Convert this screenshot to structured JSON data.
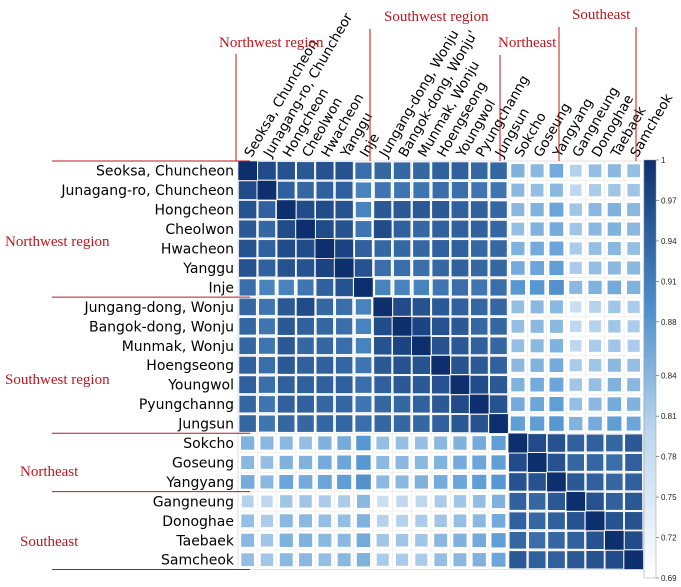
{
  "chart_data": {
    "type": "heatmap",
    "rows": [
      "Seoksa, Chuncheon",
      "Junagang-ro, Chuncheon",
      "Hongcheon",
      "Cheolwon",
      "Hwacheon",
      "Yanggu",
      "Inje",
      "Jungang-dong, Wonju",
      "Bangok-dong, Wonju",
      "Munmak, Wonju",
      "Hoengseong",
      "Youngwol",
      "Pyungchanng",
      "Jungsun",
      "Sokcho",
      "Goseung",
      "Yangyang",
      "Gangneung",
      "Donoghae",
      "Taebaek",
      "Samcheok"
    ],
    "columns": [
      "Seoksa, Chuncheon",
      "Junagang-ro, Chuncheor",
      "Hongcheon",
      "Cheolwon",
      "Hwacheon",
      "Yanggu",
      "Inje",
      "Jungang-dong, Wonju",
      "Bangok-dong, Wonju'",
      "Munmak, Wonju",
      "Hoengseong",
      "Youngwol",
      "Pyungchanng",
      "Jungsun",
      "Sokcho",
      "Goseung",
      "Yangyang",
      "Gangneung",
      "Donoghae",
      "Taebaek",
      "Samcheok"
    ],
    "values": [
      [
        1.0,
        0.96,
        0.95,
        0.94,
        0.95,
        0.95,
        0.91,
        0.92,
        0.92,
        0.92,
        0.93,
        0.93,
        0.92,
        0.92,
        0.81,
        0.8,
        0.82,
        0.76,
        0.79,
        0.8,
        0.79
      ],
      [
        0.96,
        1.0,
        0.93,
        0.92,
        0.93,
        0.93,
        0.88,
        0.9,
        0.9,
        0.9,
        0.91,
        0.91,
        0.9,
        0.9,
        0.8,
        0.79,
        0.8,
        0.75,
        0.77,
        0.78,
        0.78
      ],
      [
        0.95,
        0.93,
        1.0,
        0.96,
        0.96,
        0.95,
        0.88,
        0.94,
        0.94,
        0.94,
        0.94,
        0.93,
        0.93,
        0.92,
        0.8,
        0.81,
        0.83,
        0.78,
        0.8,
        0.81,
        0.8
      ],
      [
        0.94,
        0.92,
        0.96,
        1.0,
        0.96,
        0.95,
        0.9,
        0.96,
        0.93,
        0.92,
        0.93,
        0.93,
        0.93,
        0.92,
        0.79,
        0.81,
        0.82,
        0.78,
        0.8,
        0.81,
        0.8
      ],
      [
        0.95,
        0.93,
        0.96,
        0.96,
        1.0,
        0.97,
        0.93,
        0.92,
        0.92,
        0.92,
        0.93,
        0.93,
        0.92,
        0.92,
        0.81,
        0.82,
        0.83,
        0.77,
        0.79,
        0.8,
        0.79
      ],
      [
        0.95,
        0.93,
        0.95,
        0.95,
        0.97,
        1.0,
        0.95,
        0.91,
        0.91,
        0.91,
        0.92,
        0.93,
        0.92,
        0.92,
        0.82,
        0.83,
        0.84,
        0.77,
        0.79,
        0.8,
        0.8
      ],
      [
        0.91,
        0.88,
        0.88,
        0.9,
        0.93,
        0.95,
        1.0,
        0.88,
        0.88,
        0.88,
        0.9,
        0.91,
        0.9,
        0.91,
        0.85,
        0.85,
        0.86,
        0.8,
        0.81,
        0.82,
        0.81
      ],
      [
        0.92,
        0.9,
        0.94,
        0.96,
        0.92,
        0.91,
        0.88,
        1.0,
        0.96,
        0.95,
        0.94,
        0.93,
        0.92,
        0.92,
        0.79,
        0.8,
        0.8,
        0.74,
        0.76,
        0.78,
        0.77
      ],
      [
        0.92,
        0.9,
        0.94,
        0.93,
        0.92,
        0.91,
        0.88,
        0.96,
        1.0,
        0.97,
        0.95,
        0.94,
        0.92,
        0.92,
        0.79,
        0.8,
        0.8,
        0.75,
        0.76,
        0.78,
        0.77
      ],
      [
        0.92,
        0.9,
        0.94,
        0.92,
        0.92,
        0.91,
        0.88,
        0.95,
        0.97,
        1.0,
        0.95,
        0.94,
        0.93,
        0.92,
        0.79,
        0.8,
        0.81,
        0.75,
        0.77,
        0.78,
        0.77
      ],
      [
        0.93,
        0.91,
        0.94,
        0.93,
        0.93,
        0.92,
        0.9,
        0.94,
        0.95,
        0.95,
        1.0,
        0.95,
        0.94,
        0.93,
        0.8,
        0.81,
        0.82,
        0.77,
        0.78,
        0.8,
        0.79
      ],
      [
        0.93,
        0.91,
        0.93,
        0.93,
        0.93,
        0.93,
        0.91,
        0.93,
        0.94,
        0.94,
        0.95,
        1.0,
        0.96,
        0.94,
        0.81,
        0.82,
        0.83,
        0.78,
        0.79,
        0.81,
        0.8
      ],
      [
        0.92,
        0.9,
        0.93,
        0.93,
        0.92,
        0.92,
        0.9,
        0.92,
        0.92,
        0.93,
        0.94,
        0.96,
        1.0,
        0.95,
        0.82,
        0.83,
        0.84,
        0.79,
        0.8,
        0.82,
        0.81
      ],
      [
        0.92,
        0.9,
        0.92,
        0.92,
        0.92,
        0.92,
        0.91,
        0.92,
        0.92,
        0.92,
        0.93,
        0.94,
        0.95,
        1.0,
        0.84,
        0.84,
        0.85,
        0.81,
        0.82,
        0.84,
        0.83
      ],
      [
        0.81,
        0.8,
        0.8,
        0.79,
        0.81,
        0.82,
        0.85,
        0.79,
        0.79,
        0.79,
        0.8,
        0.81,
        0.82,
        0.84,
        1.0,
        0.96,
        0.95,
        0.93,
        0.93,
        0.92,
        0.94
      ],
      [
        0.8,
        0.79,
        0.81,
        0.81,
        0.82,
        0.83,
        0.85,
        0.8,
        0.8,
        0.8,
        0.81,
        0.82,
        0.83,
        0.84,
        0.96,
        1.0,
        0.95,
        0.92,
        0.92,
        0.91,
        0.93
      ],
      [
        0.82,
        0.8,
        0.83,
        0.82,
        0.83,
        0.84,
        0.86,
        0.8,
        0.8,
        0.81,
        0.82,
        0.83,
        0.84,
        0.85,
        0.95,
        0.95,
        1.0,
        0.94,
        0.93,
        0.92,
        0.93
      ],
      [
        0.76,
        0.75,
        0.78,
        0.78,
        0.77,
        0.77,
        0.8,
        0.74,
        0.75,
        0.75,
        0.77,
        0.78,
        0.79,
        0.81,
        0.93,
        0.92,
        0.94,
        1.0,
        0.95,
        0.93,
        0.94
      ],
      [
        0.79,
        0.77,
        0.8,
        0.8,
        0.79,
        0.79,
        0.81,
        0.76,
        0.76,
        0.77,
        0.78,
        0.79,
        0.8,
        0.82,
        0.93,
        0.92,
        0.93,
        0.95,
        1.0,
        0.95,
        0.95
      ],
      [
        0.8,
        0.78,
        0.81,
        0.81,
        0.8,
        0.8,
        0.82,
        0.78,
        0.78,
        0.78,
        0.8,
        0.81,
        0.82,
        0.84,
        0.92,
        0.91,
        0.92,
        0.93,
        0.95,
        1.0,
        0.96
      ],
      [
        0.79,
        0.78,
        0.8,
        0.8,
        0.79,
        0.8,
        0.81,
        0.77,
        0.77,
        0.77,
        0.79,
        0.8,
        0.81,
        0.83,
        0.94,
        0.93,
        0.93,
        0.94,
        0.95,
        0.96,
        1.0
      ]
    ],
    "colorbar": {
      "min": 0.69,
      "max": 1,
      "ticks": [
        "1",
        "0.97",
        "0.94",
        "0.91",
        "0.88",
        "0.84",
        "0.81",
        "0.78",
        "0.75",
        "0.72",
        "0.69"
      ]
    },
    "colors": {
      "low": "#ffffff",
      "mid": "#5b9bd5",
      "high": "#0d2f6e",
      "group_label": "#c0161c"
    },
    "row_groups": [
      {
        "label": "Northwest region",
        "start": 0,
        "end": 6
      },
      {
        "label": "Southwest region",
        "start": 7,
        "end": 13
      },
      {
        "label": "Northeast",
        "start": 14,
        "end": 16
      },
      {
        "label": "Southeast",
        "start": 17,
        "end": 20
      }
    ],
    "column_groups": [
      {
        "label": "Northwest region",
        "start": 0,
        "end": 6
      },
      {
        "label": "Southwest region",
        "start": 7,
        "end": 13
      },
      {
        "label": "Northeast",
        "start": 14,
        "end": 16
      },
      {
        "label": "Southeast",
        "start": 17,
        "end": 20
      }
    ]
  }
}
